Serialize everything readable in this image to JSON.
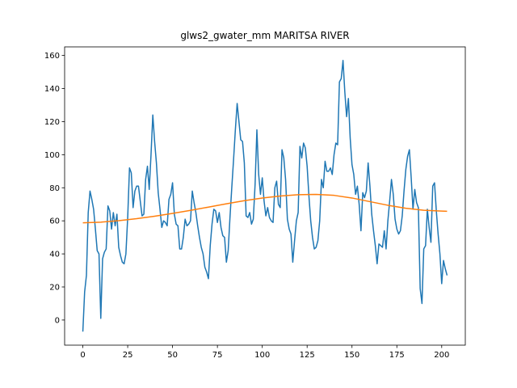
{
  "chart_data": {
    "type": "line",
    "title": "glws2_gwater_mm MARITSA RIVER",
    "xlim": [
      -10.15,
      213.15
    ],
    "ylim": [
      -15.2,
      165.2
    ],
    "xticks": [
      0,
      25,
      50,
      75,
      100,
      125,
      150,
      175,
      200
    ],
    "yticks": [
      0,
      20,
      40,
      60,
      80,
      100,
      120,
      140,
      160
    ],
    "grid": false,
    "series": [
      {
        "color": "#1f77b4",
        "x": [
          0,
          1,
          2,
          3,
          4,
          5,
          6,
          7,
          8,
          9,
          10,
          11,
          12,
          13,
          14,
          15,
          16,
          17,
          18,
          19,
          20,
          21,
          22,
          23,
          24,
          25,
          26,
          27,
          28,
          29,
          30,
          31,
          32,
          33,
          34,
          35,
          36,
          37,
          38,
          39,
          40,
          41,
          42,
          43,
          44,
          45,
          46,
          47,
          48,
          49,
          50,
          51,
          52,
          53,
          54,
          55,
          56,
          57,
          58,
          59,
          60,
          61,
          62,
          63,
          64,
          65,
          66,
          67,
          68,
          69,
          70,
          71,
          72,
          73,
          74,
          75,
          76,
          77,
          78,
          79,
          80,
          81,
          82,
          83,
          84,
          85,
          86,
          87,
          88,
          89,
          90,
          91,
          92,
          93,
          94,
          95,
          96,
          97,
          98,
          99,
          100,
          101,
          102,
          103,
          104,
          105,
          106,
          107,
          108,
          109,
          110,
          111,
          112,
          113,
          114,
          115,
          116,
          117,
          118,
          119,
          120,
          121,
          122,
          123,
          124,
          125,
          126,
          127,
          128,
          129,
          130,
          131,
          132,
          133,
          134,
          135,
          136,
          137,
          138,
          139,
          140,
          141,
          142,
          143,
          144,
          145,
          146,
          147,
          148,
          149,
          150,
          151,
          152,
          153,
          154,
          155,
          156,
          157,
          158,
          159,
          160,
          161,
          162,
          163,
          164,
          165,
          166,
          167,
          168,
          169,
          170,
          171,
          172,
          173,
          174,
          175,
          176,
          177,
          178,
          179,
          180,
          181,
          182,
          183,
          184,
          185,
          186,
          187,
          188,
          189,
          190,
          191,
          192,
          193,
          194,
          195,
          196,
          197,
          198,
          199,
          200,
          201,
          202,
          203
        ],
        "values": [
          -7,
          17,
          27,
          65,
          78,
          73,
          67,
          55,
          42,
          40,
          1,
          37,
          41,
          43,
          69,
          66,
          55,
          65,
          57,
          64,
          44,
          39,
          35,
          34,
          40,
          62,
          92,
          89,
          68,
          78,
          81,
          81,
          72,
          63,
          64,
          85,
          93,
          79,
          100,
          124,
          108,
          95,
          77,
          67,
          56,
          60,
          59,
          57,
          73,
          76,
          83,
          64,
          58,
          57,
          43,
          43,
          50,
          61,
          57,
          58,
          60,
          78,
          71,
          65,
          57,
          50,
          44,
          40,
          32,
          29,
          25,
          45,
          58,
          67,
          66,
          59,
          65,
          56,
          51,
          50,
          35,
          42,
          62,
          80,
          97,
          115,
          131,
          120,
          109,
          108,
          95,
          63,
          62,
          65,
          58,
          61,
          82,
          115,
          88,
          76,
          86,
          72,
          63,
          68,
          62,
          60,
          59,
          80,
          84,
          70,
          68,
          103,
          98,
          85,
          61,
          55,
          52,
          35,
          48,
          60,
          65,
          105,
          98,
          107,
          104,
          93,
          75,
          60,
          50,
          43,
          44,
          48,
          60,
          85,
          80,
          96,
          90,
          90,
          92,
          88,
          100,
          107,
          106,
          144,
          146,
          157,
          138,
          123,
          134,
          110,
          94,
          88,
          76,
          81,
          70,
          54,
          77,
          74,
          78,
          95,
          81,
          64,
          54,
          45,
          34,
          46,
          45,
          44,
          54,
          43,
          60,
          72,
          85,
          76,
          61,
          55,
          52,
          54,
          63,
          78,
          91,
          99,
          103,
          86,
          67,
          79,
          71,
          68,
          19,
          10,
          43,
          45,
          67,
          56,
          47,
          81,
          83,
          66,
          52,
          40,
          22,
          36,
          31,
          27
        ]
      },
      {
        "color": "#ff7f0e",
        "x": [
          0,
          10,
          20,
          30,
          40,
          50,
          60,
          70,
          80,
          90,
          100,
          110,
          120,
          130,
          140,
          150,
          160,
          170,
          180,
          190,
          200,
          203
        ],
        "values": [
          58.8,
          59.2,
          60.1,
          61.3,
          62.8,
          64.5,
          66.3,
          68.3,
          70.3,
          72.2,
          73.8,
          75,
          75.8,
          76,
          75.4,
          73.8,
          71.6,
          69.4,
          67.6,
          66.4,
          65.9,
          65.8
        ]
      }
    ]
  }
}
